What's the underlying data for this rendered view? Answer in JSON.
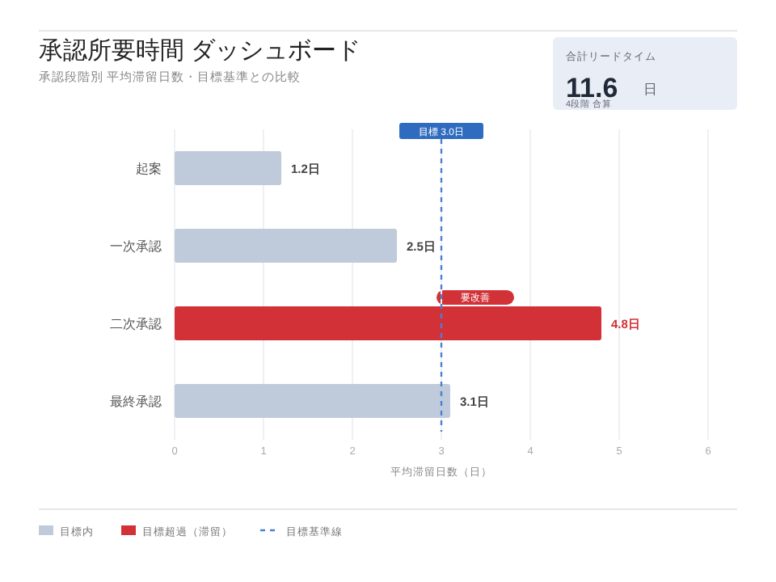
{
  "chart_data": {
    "type": "bar",
    "orientation": "horizontal",
    "title": "承認所要時間 ダッシュボード",
    "subtitle": "承認段階別 平均滞留日数・目標基準との比較",
    "xlabel": "平均滞留日数（日）",
    "categories": [
      "起案",
      "一次承認",
      "二次承認",
      "最終承認"
    ],
    "series": [
      {
        "name": "目標内",
        "color": "#bfcbdb",
        "values": [
          1.2,
          2.5,
          null,
          3.1
        ],
        "value_labels": [
          "1.2日",
          "2.5日",
          null,
          "3.1日"
        ]
      },
      {
        "name": "目標超過（滞留）",
        "color": "#d23237",
        "values": [
          null,
          null,
          4.8,
          null
        ],
        "value_labels": [
          null,
          null,
          "4.8日",
          null
        ]
      }
    ],
    "xlim": [
      0,
      6
    ],
    "xticks": [
      0,
      1,
      2,
      3,
      4,
      5,
      6
    ],
    "grid": "x",
    "legend": "bottom",
    "ref_lines": [
      {
        "axis": "x",
        "value": 3,
        "label": "目標基準線",
        "color": "#4a80d4",
        "line_style": "dashed"
      }
    ],
    "annotations": [
      "合計リードタイム",
      "11.6",
      "日",
      "4段階 合算",
      "要改善",
      {
        "text": "目標 3.0日",
        "x": 3
      }
    ]
  }
}
